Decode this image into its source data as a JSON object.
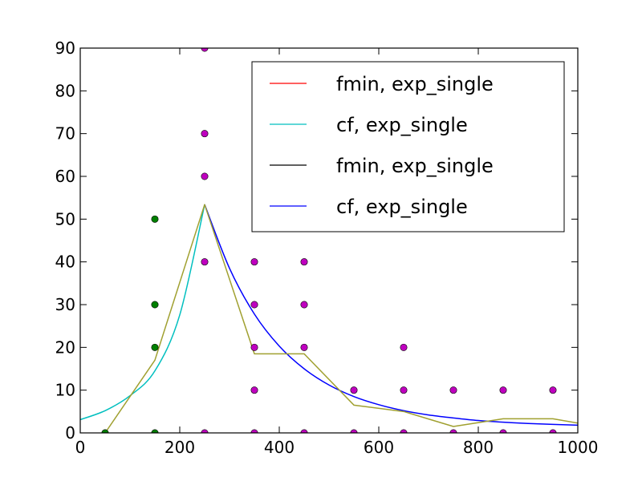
{
  "chart_data": {
    "type": "line",
    "title": "",
    "xlabel": "",
    "ylabel": "",
    "xlim": [
      0,
      1000
    ],
    "ylim": [
      0,
      90
    ],
    "xticks": [
      0,
      200,
      400,
      600,
      800,
      1000
    ],
    "yticks": [
      0,
      10,
      20,
      30,
      40,
      50,
      60,
      70,
      80,
      90
    ],
    "grid": false,
    "legend_position": "top-right",
    "legend": [
      {
        "label": "fmin, exp_single",
        "color": "#ff0000"
      },
      {
        "label": "cf, exp_single",
        "color": "#00bfbf"
      },
      {
        "label": "fmin, exp_single",
        "color": "#000000"
      },
      {
        "label": "cf, exp_single",
        "color": "#0000ff"
      }
    ],
    "series": [
      {
        "color": "#00bfbf",
        "kind": "curve",
        "x": [
          0,
          50,
          100,
          150,
          200,
          250
        ],
        "y": [
          3.1,
          5.2,
          8.7,
          14.5,
          27.6,
          53.4
        ]
      },
      {
        "color": "#0000ff",
        "kind": "curve",
        "x": [
          250,
          300,
          350,
          400,
          450,
          500,
          550,
          600,
          650,
          700,
          750,
          800,
          850,
          900,
          950,
          1000
        ],
        "y": [
          53.4,
          38.5,
          27.8,
          20.3,
          15.0,
          11.2,
          8.5,
          6.6,
          5.2,
          4.2,
          3.5,
          2.9,
          2.5,
          2.2,
          2.0,
          1.8
        ]
      },
      {
        "color": "#a0a030",
        "kind": "polyline",
        "x": [
          50,
          150,
          250,
          350,
          450,
          550,
          650,
          750,
          850,
          950,
          1000
        ],
        "y": [
          0,
          17,
          53.4,
          18.5,
          18.5,
          6.5,
          5,
          1.5,
          3.3,
          3.3,
          2.3
        ]
      }
    ],
    "points": [
      {
        "color": "#007f00",
        "xy": [
          [
            50,
            0
          ],
          [
            150,
            0
          ],
          [
            150,
            20
          ],
          [
            150,
            30
          ],
          [
            150,
            50
          ]
        ]
      },
      {
        "color": "#bf00bf",
        "xy": [
          [
            250,
            0
          ],
          [
            250,
            40
          ],
          [
            250,
            60
          ],
          [
            250,
            70
          ],
          [
            250,
            90
          ],
          [
            350,
            0
          ],
          [
            350,
            10
          ],
          [
            350,
            20
          ],
          [
            350,
            30
          ],
          [
            350,
            40
          ],
          [
            450,
            0
          ],
          [
            450,
            20
          ],
          [
            450,
            30
          ],
          [
            450,
            40
          ],
          [
            550,
            0
          ],
          [
            550,
            10
          ],
          [
            650,
            0
          ],
          [
            650,
            10
          ],
          [
            650,
            20
          ],
          [
            750,
            0
          ],
          [
            750,
            10
          ],
          [
            850,
            0
          ],
          [
            850,
            10
          ],
          [
            950,
            0
          ],
          [
            950,
            10
          ]
        ]
      }
    ]
  }
}
